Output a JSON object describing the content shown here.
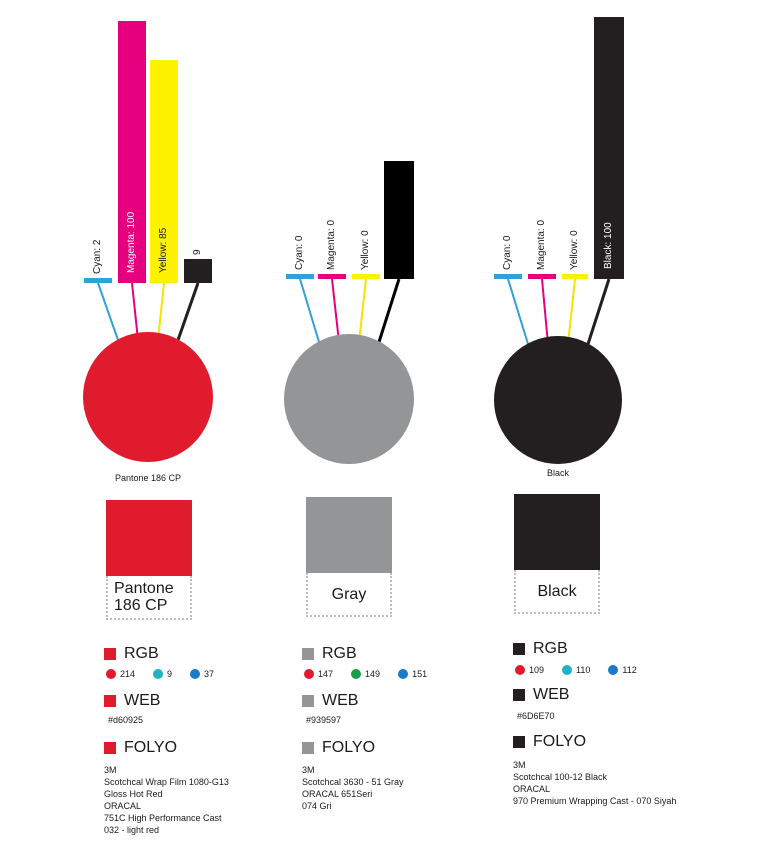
{
  "groups": [
    {
      "id": "pantone",
      "caption": "Pantone 186 CP",
      "circle_color": "#e01b2e",
      "swatch_color": "#e01b2e",
      "swatch_label_lines": [
        "Pantone",
        "186 CP"
      ],
      "cmyk": [
        {
          "label": "Cyan: 2",
          "value": 2,
          "color": "#2fa3d8"
        },
        {
          "label": "Magenta: 100",
          "value": 100,
          "color": "#e6007e"
        },
        {
          "label": "Yellow: 85",
          "value": 85,
          "color": "#fff200"
        },
        {
          "label": "9",
          "value": 9,
          "color": "#231f20"
        }
      ],
      "rgb_title": "RGB",
      "rgb": [
        {
          "value": "214",
          "color": "#e01b2e"
        },
        {
          "value": "9",
          "color": "#1fb3c5"
        },
        {
          "value": "37",
          "color": "#1a7bc6"
        }
      ],
      "web_title": "WEB",
      "web": "#d60925",
      "folyo_title": "FOLYO",
      "folyo": [
        "3M",
        "Scotchcal Wrap Film 1080-G13",
        "Gloss Hot Red",
        "ORACAL",
        "751C High Performance Cast",
        "032 - light red"
      ],
      "sq_color": "#e01b2e"
    },
    {
      "id": "gray",
      "caption": "",
      "circle_color": "#939597",
      "swatch_color": "#939597",
      "swatch_label_lines": [
        "Gray"
      ],
      "cmyk": [
        {
          "label": "Cyan: 0",
          "value": 0,
          "color": "#2fa3d8"
        },
        {
          "label": "Magenta: 0",
          "value": 0,
          "color": "#e6007e"
        },
        {
          "label": "Yellow: 0",
          "value": 0,
          "color": "#fff200"
        },
        {
          "label": "",
          "value": 45,
          "color": "#000000"
        }
      ],
      "rgb_title": "RGB",
      "rgb": [
        {
          "value": "147",
          "color": "#e01b2e"
        },
        {
          "value": "149",
          "color": "#1a9e4b"
        },
        {
          "value": "151",
          "color": "#1a7bc6"
        }
      ],
      "web_title": "WEB",
      "web": "#939597",
      "folyo_title": "FOLYO",
      "folyo": [
        "3M",
        "Scotchcal  3630 - 51 Gray",
        "ORACAL 651Seri",
        "074 Gri"
      ],
      "sq_color": "#939597"
    },
    {
      "id": "black",
      "caption": "Black",
      "circle_color": "#231f20",
      "swatch_color": "#231f20",
      "swatch_label_lines": [
        "Black"
      ],
      "cmyk": [
        {
          "label": "Cyan: 0",
          "value": 0,
          "color": "#2fa3d8"
        },
        {
          "label": "Magenta: 0",
          "value": 0,
          "color": "#e6007e"
        },
        {
          "label": "Yellow: 0",
          "value": 0,
          "color": "#fff200"
        },
        {
          "label": "Black: 100",
          "value": 100,
          "color": "#231f20"
        }
      ],
      "rgb_title": "RGB",
      "rgb": [
        {
          "value": "109",
          "color": "#e01b2e"
        },
        {
          "value": "110",
          "color": "#1fb3c5"
        },
        {
          "value": "112",
          "color": "#1a7bc6"
        }
      ],
      "web_title": "WEB",
      "web": "#6D6E70",
      "folyo_title": "FOLYO",
      "folyo": [
        "3M",
        "Scotchcal 100-12 Black",
        "ORACAL",
        "970 Premium Wrapping Cast - 070 Siyah"
      ],
      "sq_color": "#231f20"
    }
  ]
}
